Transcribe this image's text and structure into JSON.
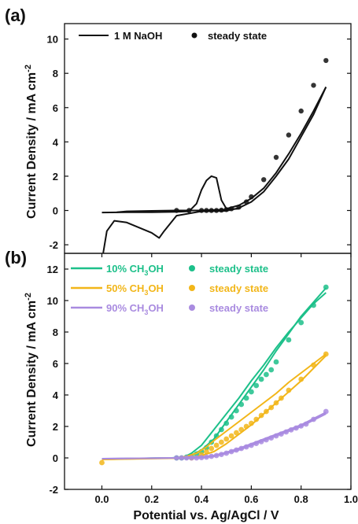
{
  "chart_data": [
    {
      "panel_label": "(a)",
      "type": "line",
      "xlim": [
        -0.15,
        1.0
      ],
      "ylim": [
        -2.5,
        10.9
      ],
      "yticks": [
        -2,
        0,
        2,
        4,
        6,
        8,
        10
      ],
      "series": [
        {
          "name": "1 M NaOH",
          "kind": "line",
          "color": "#111111",
          "segments": [
            {
              "x": [
                0.0,
                0.1,
                0.2,
                0.3,
                0.35,
                0.38,
                0.4,
                0.42,
                0.44,
                0.46,
                0.48,
                0.5,
                0.55,
                0.6,
                0.65,
                0.7,
                0.75,
                0.8,
                0.85,
                0.9
              ],
              "y": [
                -0.12,
                -0.1,
                -0.1,
                -0.08,
                -0.05,
                0.4,
                1.2,
                1.75,
                2.0,
                1.9,
                0.6,
                0.1,
                0.3,
                0.7,
                1.3,
                2.2,
                3.3,
                4.5,
                5.8,
                7.2
              ]
            },
            {
              "x": [
                0.9,
                0.85,
                0.8,
                0.75,
                0.7,
                0.65,
                0.6,
                0.55,
                0.5,
                0.45,
                0.4,
                0.3,
                0.25,
                0.23,
                0.2,
                0.1,
                0.05,
                0.02,
                0.005
              ],
              "y": [
                7.2,
                5.6,
                4.3,
                3.0,
                2.0,
                1.1,
                0.5,
                0.15,
                -0.02,
                -0.04,
                -0.05,
                -0.3,
                -1.2,
                -1.6,
                -1.3,
                -0.7,
                -0.6,
                -1.2,
                -2.5
              ]
            },
            {
              "x": [
                0.06,
                0.1,
                0.2,
                0.3,
                0.4,
                0.5,
                0.55
              ],
              "y": [
                -0.1,
                -0.05,
                -0.02,
                0.0,
                0.0,
                0.05,
                0.1
              ]
            }
          ]
        },
        {
          "name": "steady state",
          "kind": "scatter",
          "color": "#111111",
          "x": [
            0.3,
            0.35,
            0.4,
            0.42,
            0.44,
            0.46,
            0.48,
            0.5,
            0.52,
            0.55,
            0.58,
            0.6,
            0.65,
            0.7,
            0.75,
            0.8,
            0.85,
            0.9
          ],
          "y": [
            0.0,
            0.0,
            0.0,
            0.0,
            0.0,
            0.0,
            0.02,
            0.05,
            0.1,
            0.2,
            0.5,
            0.8,
            1.8,
            3.1,
            4.4,
            5.8,
            7.3,
            8.75
          ]
        }
      ]
    },
    {
      "panel_label": "(b)",
      "type": "line",
      "xlabel": "Potential vs. Ag/AgCl / V",
      "xlim": [
        -0.15,
        1.0
      ],
      "ylim": [
        -2.0,
        13.0
      ],
      "xticks": [
        0.0,
        0.2,
        0.4,
        0.6,
        0.8,
        1.0
      ],
      "yticks": [
        -2,
        0,
        2,
        4,
        6,
        8,
        10,
        12
      ],
      "series": [
        {
          "name": "10% CH3OH",
          "color": "#1dc08a",
          "kind": "line",
          "segments": [
            {
              "x": [
                0.0,
                0.1,
                0.2,
                0.28,
                0.33,
                0.36,
                0.4,
                0.45,
                0.5,
                0.55,
                0.6,
                0.65,
                0.7,
                0.75,
                0.8,
                0.85,
                0.9
              ],
              "y": [
                -0.08,
                -0.05,
                -0.02,
                0.0,
                0.05,
                0.3,
                0.8,
                1.8,
                2.8,
                3.8,
                4.9,
                5.9,
                7.0,
                8.0,
                8.9,
                9.8,
                10.5
              ]
            },
            {
              "x": [
                0.9,
                0.85,
                0.8,
                0.75,
                0.7,
                0.65,
                0.6,
                0.55,
                0.5,
                0.45,
                0.4,
                0.35,
                0.3,
                0.2,
                0.0
              ],
              "y": [
                10.8,
                9.9,
                9.0,
                7.9,
                6.8,
                5.6,
                4.5,
                3.4,
                2.3,
                1.2,
                0.5,
                0.1,
                0.0,
                -0.02,
                -0.06
              ]
            }
          ]
        },
        {
          "name": "steady state",
          "color": "#1dc08a",
          "kind": "scatter",
          "x": [
            0.3,
            0.32,
            0.34,
            0.36,
            0.38,
            0.4,
            0.42,
            0.44,
            0.46,
            0.48,
            0.5,
            0.52,
            0.54,
            0.56,
            0.58,
            0.6,
            0.62,
            0.64,
            0.66,
            0.68,
            0.7,
            0.75,
            0.8,
            0.85,
            0.9
          ],
          "y": [
            0.0,
            0.0,
            0.05,
            0.1,
            0.25,
            0.4,
            0.65,
            1.0,
            1.4,
            1.8,
            2.2,
            2.6,
            3.0,
            3.4,
            3.8,
            4.2,
            4.6,
            5.0,
            5.3,
            5.6,
            6.1,
            7.5,
            8.6,
            9.7,
            10.85
          ]
        },
        {
          "name": "50% CH3OH",
          "color": "#f2b619",
          "kind": "line",
          "segments": [
            {
              "x": [
                0.0,
                0.1,
                0.2,
                0.3,
                0.34,
                0.38,
                0.42,
                0.45,
                0.5,
                0.55,
                0.6,
                0.65,
                0.7,
                0.75,
                0.8,
                0.85,
                0.9
              ],
              "y": [
                -0.1,
                -0.06,
                -0.03,
                0.0,
                0.1,
                0.3,
                0.7,
                1.1,
                1.7,
                2.3,
                2.9,
                3.5,
                4.1,
                4.8,
                5.4,
                6.0,
                6.6
              ]
            },
            {
              "x": [
                0.9,
                0.85,
                0.8,
                0.75,
                0.7,
                0.65,
                0.6,
                0.55,
                0.5,
                0.45,
                0.4,
                0.35,
                0.3,
                0.0
              ],
              "y": [
                6.5,
                5.7,
                4.9,
                4.2,
                3.5,
                2.8,
                2.1,
                1.5,
                0.9,
                0.4,
                0.15,
                0.0,
                -0.02,
                -0.1
              ]
            }
          ]
        },
        {
          "name": "steady state",
          "color": "#f2b619",
          "kind": "scatter",
          "x": [
            0.0,
            0.36,
            0.4,
            0.42,
            0.44,
            0.46,
            0.48,
            0.5,
            0.52,
            0.54,
            0.56,
            0.58,
            0.6,
            0.62,
            0.64,
            0.66,
            0.68,
            0.7,
            0.72,
            0.75,
            0.8,
            0.85,
            0.9
          ],
          "y": [
            -0.3,
            0.0,
            0.2,
            0.4,
            0.6,
            0.8,
            1.0,
            1.2,
            1.4,
            1.6,
            1.8,
            2.0,
            2.2,
            2.45,
            2.7,
            2.95,
            3.2,
            3.5,
            3.8,
            4.3,
            5.0,
            5.9,
            6.6
          ]
        },
        {
          "name": "90% CH3OH",
          "color": "#a98be0",
          "kind": "line",
          "segments": [
            {
              "x": [
                0.0,
                0.1,
                0.2,
                0.3,
                0.4,
                0.45,
                0.5,
                0.55,
                0.6,
                0.65,
                0.7,
                0.75,
                0.8,
                0.85,
                0.9
              ],
              "y": [
                -0.05,
                -0.03,
                -0.02,
                0.0,
                0.05,
                0.15,
                0.35,
                0.6,
                0.9,
                1.2,
                1.5,
                1.8,
                2.1,
                2.5,
                2.9
              ]
            },
            {
              "x": [
                0.9,
                0.85,
                0.8,
                0.75,
                0.7,
                0.65,
                0.6,
                0.55,
                0.5,
                0.45,
                0.4,
                0.3,
                0.0
              ],
              "y": [
                2.8,
                2.4,
                2.0,
                1.7,
                1.4,
                1.1,
                0.8,
                0.5,
                0.3,
                0.1,
                0.02,
                0.0,
                -0.05
              ]
            }
          ]
        },
        {
          "name": "steady state",
          "color": "#a98be0",
          "kind": "scatter",
          "x": [
            0.3,
            0.32,
            0.34,
            0.36,
            0.38,
            0.4,
            0.42,
            0.44,
            0.46,
            0.48,
            0.5,
            0.52,
            0.54,
            0.56,
            0.58,
            0.6,
            0.62,
            0.64,
            0.66,
            0.68,
            0.7,
            0.72,
            0.74,
            0.76,
            0.78,
            0.8,
            0.82,
            0.85,
            0.9
          ],
          "y": [
            0.0,
            0.0,
            0.0,
            0.0,
            0.0,
            0.02,
            0.05,
            0.1,
            0.15,
            0.22,
            0.3,
            0.4,
            0.5,
            0.6,
            0.7,
            0.8,
            0.92,
            1.03,
            1.15,
            1.27,
            1.4,
            1.52,
            1.65,
            1.78,
            1.9,
            2.03,
            2.15,
            2.45,
            2.95
          ]
        }
      ]
    }
  ],
  "shared_ylabel": "Current Density / mA cm",
  "shared_ylabel_sup": "-2"
}
